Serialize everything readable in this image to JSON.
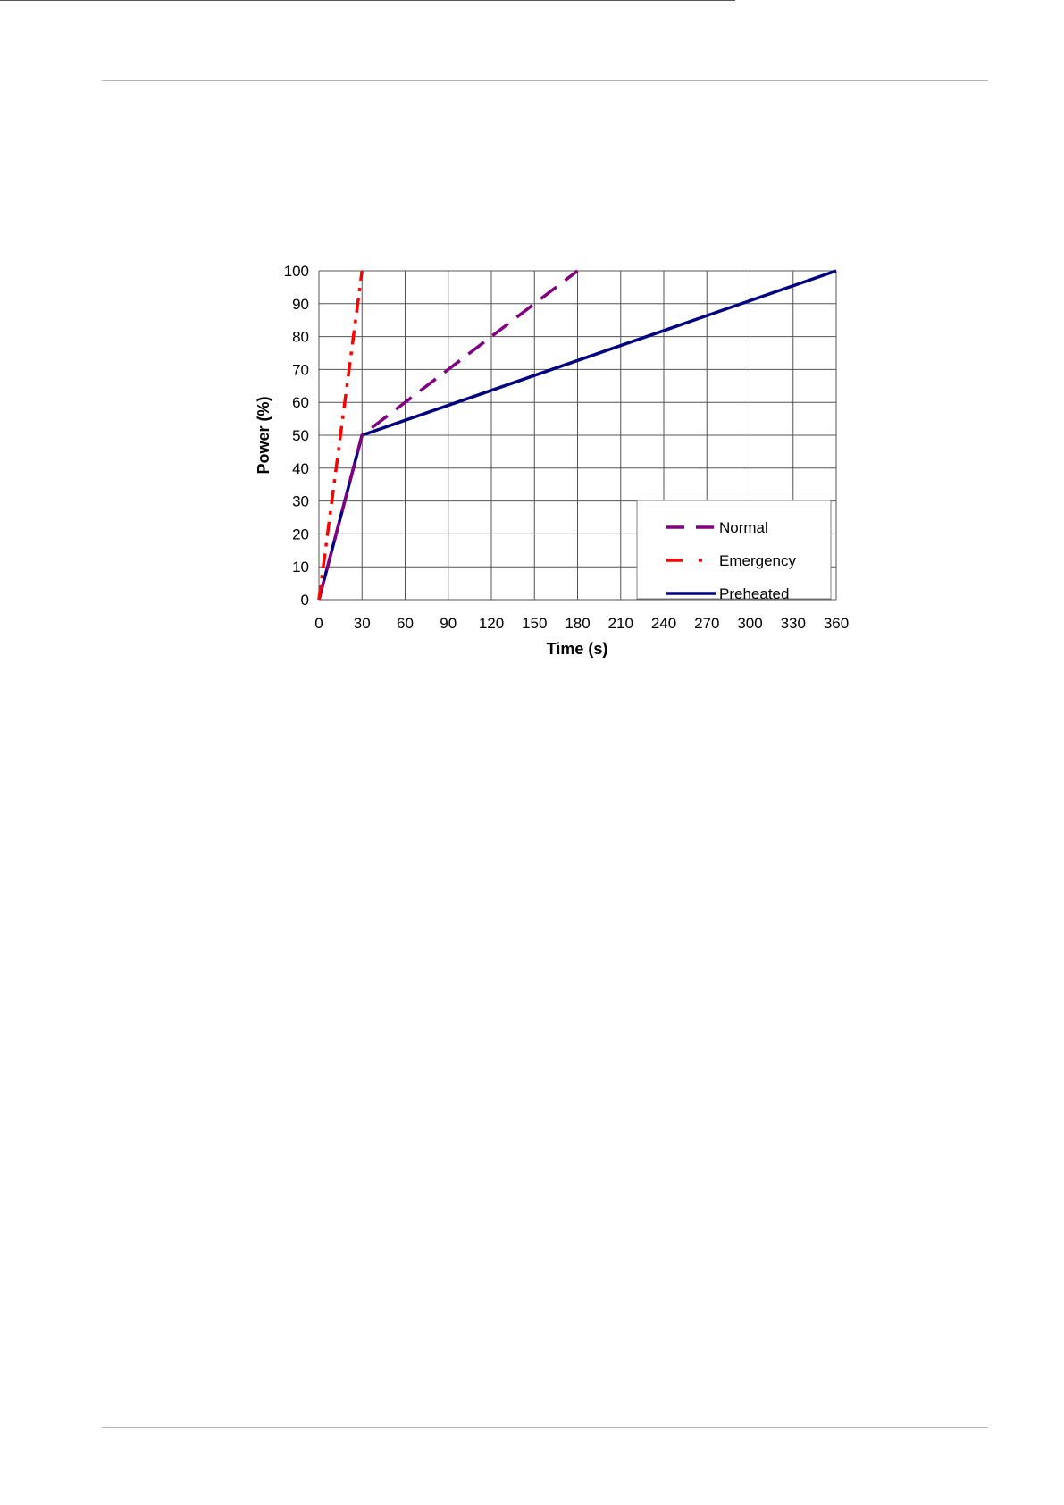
{
  "chart_data": {
    "type": "line",
    "title": "",
    "xlabel": "Time (s)",
    "ylabel": "Power (%)",
    "xlim": [
      0,
      360
    ],
    "ylim": [
      0,
      100
    ],
    "x_ticks": [
      "0",
      "30",
      "60",
      "90",
      "120",
      "150",
      "180",
      "210",
      "240",
      "270",
      "300",
      "330",
      "360"
    ],
    "y_ticks": [
      "0",
      "10",
      "20",
      "30",
      "40",
      "50",
      "60",
      "70",
      "80",
      "90",
      "100"
    ],
    "grid": true,
    "legend_position": "bottom-right",
    "series": [
      {
        "name": "Normal",
        "color": "#800080",
        "style": "dashed",
        "x": [
          0,
          30,
          180
        ],
        "y": [
          0,
          50,
          100
        ]
      },
      {
        "name": "Emergency",
        "color": "#ff0000",
        "style": "dash-dot",
        "x": [
          0,
          30
        ],
        "y": [
          0,
          100
        ]
      },
      {
        "name": "Preheated",
        "color": "#000080",
        "style": "solid",
        "x": [
          0,
          30,
          360
        ],
        "y": [
          0,
          50,
          100
        ]
      }
    ]
  }
}
